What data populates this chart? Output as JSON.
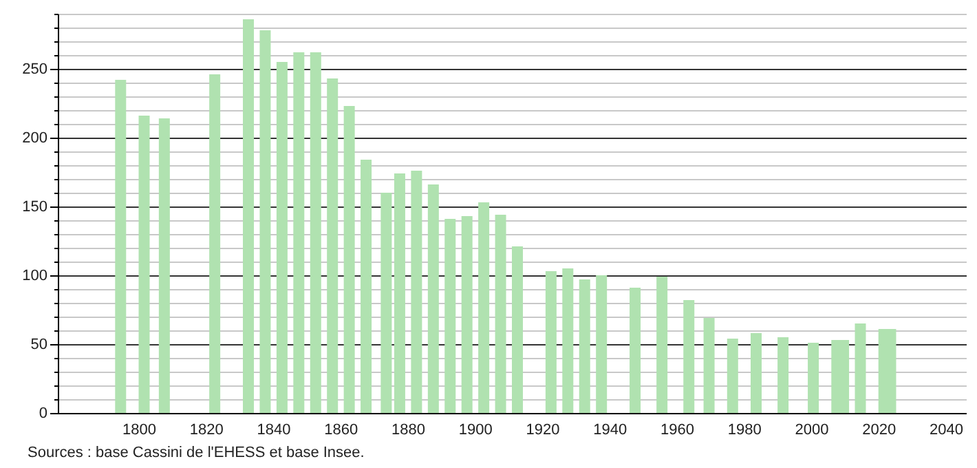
{
  "chart_data": {
    "type": "bar",
    "x": [
      1793,
      1800,
      1806,
      1821,
      1831,
      1836,
      1841,
      1846,
      1851,
      1856,
      1861,
      1866,
      1872,
      1876,
      1881,
      1886,
      1891,
      1896,
      1901,
      1906,
      1911,
      1921,
      1926,
      1931,
      1936,
      1946,
      1954,
      1962,
      1968,
      1975,
      1982,
      1990,
      1999,
      2006,
      2008,
      2013,
      2020,
      2022
    ],
    "values": [
      242,
      216,
      214,
      246,
      286,
      278,
      255,
      262,
      262,
      243,
      223,
      184,
      160,
      174,
      176,
      166,
      141,
      143,
      153,
      144,
      121,
      103,
      105,
      97,
      100,
      91,
      99,
      82,
      69,
      54,
      58,
      55,
      51,
      53,
      53,
      65,
      61,
      61
    ],
    "color": "#b0e2b0",
    "xlim": [
      1778,
      2044
    ],
    "xticks": [
      1800,
      1820,
      1840,
      1860,
      1880,
      1900,
      1920,
      1940,
      1960,
      1980,
      2000,
      2020,
      2040
    ],
    "ylim": [
      0,
      290
    ],
    "yticks": [
      0,
      {
        "value": 10,
        "label": null
      },
      {
        "value": 20,
        "label": null
      },
      {
        "value": 30,
        "label": null
      },
      {
        "value": 40,
        "label": null
      },
      50,
      {
        "value": 60,
        "label": null
      },
      {
        "value": 70,
        "label": null
      },
      {
        "value": 80,
        "label": null
      },
      {
        "value": 90,
        "label": null
      },
      100,
      {
        "value": 110,
        "label": null
      },
      {
        "value": 120,
        "label": null
      },
      {
        "value": 130,
        "label": null
      },
      {
        "value": 140,
        "label": null
      },
      150,
      {
        "value": 160,
        "label": null
      },
      {
        "value": 170,
        "label": null
      },
      {
        "value": 180,
        "label": null
      },
      {
        "value": 190,
        "label": null
      },
      200,
      {
        "value": 210,
        "label": null
      },
      {
        "value": 220,
        "label": null
      },
      {
        "value": 230,
        "label": null
      },
      {
        "value": 240,
        "label": null
      },
      250,
      {
        "value": 260,
        "label": null
      },
      {
        "value": 270,
        "label": null
      },
      {
        "value": 280,
        "label": null
      },
      {
        "value": 290,
        "label": null
      }
    ],
    "grid": "y",
    "annotations": [
      "Sources : base Cassini de l'EHESS et base Insee."
    ]
  }
}
